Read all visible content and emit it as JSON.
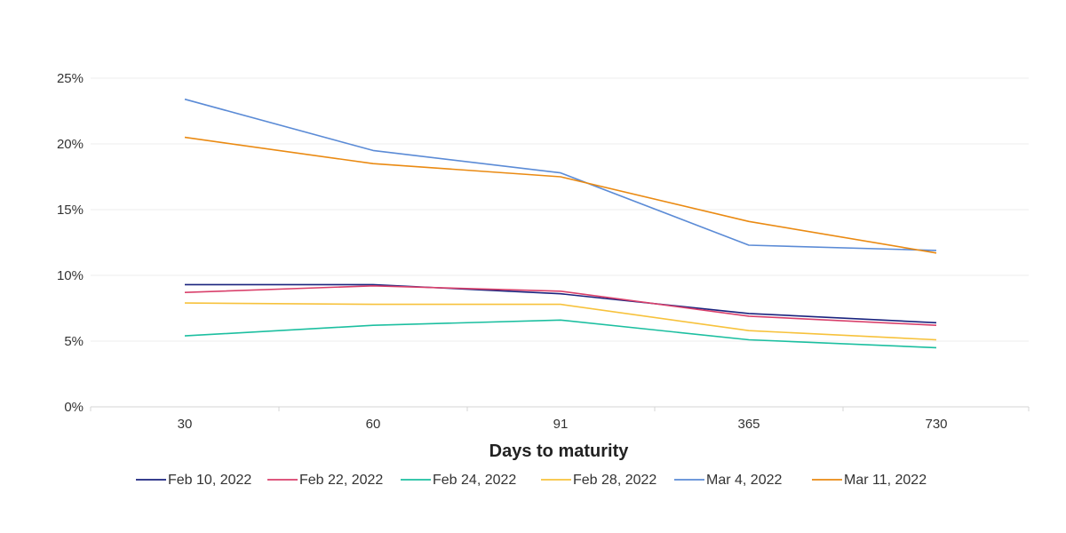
{
  "chart_data": {
    "type": "line",
    "title": "",
    "xlabel": "Days to maturity",
    "ylabel": "",
    "categories": [
      "30",
      "60",
      "91",
      "365",
      "730"
    ],
    "ylim": [
      0,
      25
    ],
    "yticks": [
      "0%",
      "5%",
      "10%",
      "15%",
      "20%",
      "25%"
    ],
    "grid": true,
    "legend_position": "bottom",
    "series": [
      {
        "name": "Feb 10, 2022",
        "color": "#1a237e",
        "values": [
          9.3,
          9.3,
          8.6,
          7.1,
          6.4
        ]
      },
      {
        "name": "Feb 22, 2022",
        "color": "#d9406b",
        "values": [
          8.7,
          9.2,
          8.8,
          6.9,
          6.2
        ]
      },
      {
        "name": "Feb 24, 2022",
        "color": "#1cbfa0",
        "values": [
          5.4,
          6.2,
          6.6,
          5.1,
          4.5
        ]
      },
      {
        "name": "Feb 28, 2022",
        "color": "#f7c23c",
        "values": [
          7.9,
          7.8,
          7.8,
          5.8,
          5.1
        ]
      },
      {
        "name": "Mar 4, 2022",
        "color": "#5b8bd6",
        "values": [
          23.4,
          19.5,
          17.8,
          12.3,
          11.9
        ]
      },
      {
        "name": "Mar 11, 2022",
        "color": "#ea8a12",
        "values": [
          20.5,
          18.5,
          17.5,
          14.1,
          11.7
        ]
      }
    ]
  }
}
